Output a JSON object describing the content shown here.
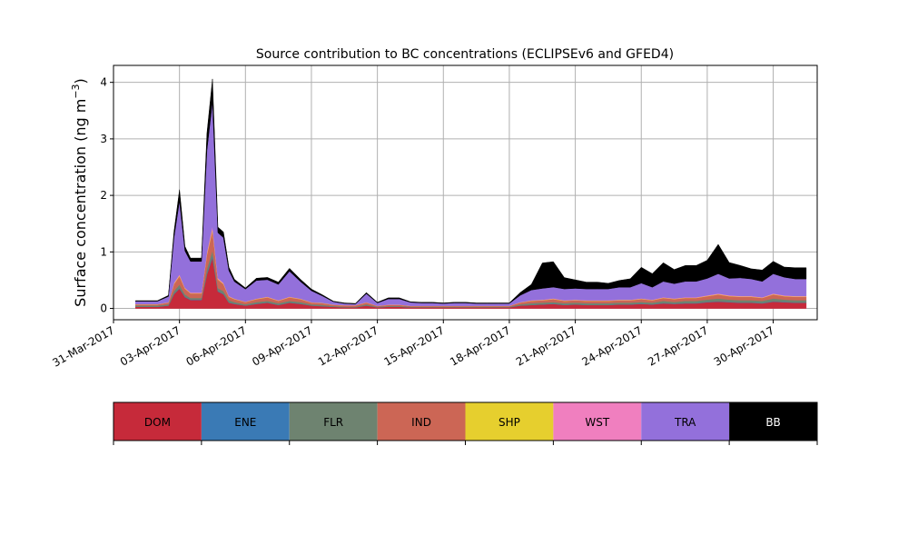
{
  "chart_data": {
    "type": "area",
    "stacked": true,
    "title": "Source contribution to BC concentrations (ECLIPSEv6 and GFED4)",
    "ylabel_main": "Surface concentration (ng m",
    "ylabel_sup": "−3",
    "ylabel_close": ")",
    "xlabel": "",
    "grid": true,
    "xlim": [
      "2017-03-31",
      "2017-05-02"
    ],
    "ylim": [
      -0.2,
      4.3
    ],
    "x_ticks": [
      "2017-03-31",
      "2017-04-03",
      "2017-04-06",
      "2017-04-09",
      "2017-04-12",
      "2017-04-15",
      "2017-04-18",
      "2017-04-21",
      "2017-04-24",
      "2017-04-27",
      "2017-04-30"
    ],
    "x_tick_labels": [
      "31-Mar-2017",
      "03-Apr-2017",
      "06-Apr-2017",
      "09-Apr-2017",
      "12-Apr-2017",
      "15-Apr-2017",
      "18-Apr-2017",
      "21-Apr-2017",
      "24-Apr-2017",
      "27-Apr-2017",
      "30-Apr-2017"
    ],
    "y_ticks": [
      0,
      1,
      2,
      3,
      4
    ],
    "y_tick_labels": [
      "0",
      "1",
      "2",
      "3",
      "4"
    ],
    "x": [
      "2017-04-01",
      "2017-04-02",
      "2017-04-02 12:00",
      "2017-04-02 18:00",
      "2017-04-03",
      "2017-04-03 06:00",
      "2017-04-03 12:00",
      "2017-04-04",
      "2017-04-04 06:00",
      "2017-04-04 12:00",
      "2017-04-04 18:00",
      "2017-04-05",
      "2017-04-05 06:00",
      "2017-04-05 12:00",
      "2017-04-06",
      "2017-04-06 12:00",
      "2017-04-07",
      "2017-04-07 12:00",
      "2017-04-08",
      "2017-04-08 12:00",
      "2017-04-09",
      "2017-04-09 12:00",
      "2017-04-10",
      "2017-04-10 12:00",
      "2017-04-11",
      "2017-04-11 12:00",
      "2017-04-12",
      "2017-04-12 12:00",
      "2017-04-13",
      "2017-04-13 12:00",
      "2017-04-14",
      "2017-04-14 12:00",
      "2017-04-15",
      "2017-04-15 12:00",
      "2017-04-16",
      "2017-04-16 12:00",
      "2017-04-17",
      "2017-04-17 12:00",
      "2017-04-18",
      "2017-04-18 12:00",
      "2017-04-19",
      "2017-04-19 12:00",
      "2017-04-20",
      "2017-04-20 12:00",
      "2017-04-21",
      "2017-04-21 12:00",
      "2017-04-22",
      "2017-04-22 12:00",
      "2017-04-23",
      "2017-04-23 12:00",
      "2017-04-24",
      "2017-04-24 12:00",
      "2017-04-25",
      "2017-04-25 12:00",
      "2017-04-26",
      "2017-04-26 12:00",
      "2017-04-27",
      "2017-04-27 12:00",
      "2017-04-28",
      "2017-04-28 12:00",
      "2017-04-29",
      "2017-04-29 12:00",
      "2017-04-30",
      "2017-04-30 12:00",
      "2017-05-01",
      "2017-05-01 12:00"
    ],
    "series": [
      {
        "name": "DOM",
        "color": "#c62a3a",
        "values": [
          0.03,
          0.03,
          0.05,
          0.25,
          0.35,
          0.2,
          0.15,
          0.15,
          0.6,
          0.9,
          0.3,
          0.25,
          0.1,
          0.08,
          0.05,
          0.08,
          0.1,
          0.06,
          0.1,
          0.08,
          0.05,
          0.04,
          0.03,
          0.02,
          0.02,
          0.05,
          0.02,
          0.03,
          0.03,
          0.02,
          0.02,
          0.02,
          0.02,
          0.02,
          0.02,
          0.02,
          0.02,
          0.02,
          0.02,
          0.05,
          0.06,
          0.07,
          0.08,
          0.06,
          0.07,
          0.06,
          0.06,
          0.06,
          0.07,
          0.07,
          0.08,
          0.07,
          0.09,
          0.08,
          0.09,
          0.09,
          0.11,
          0.12,
          0.11,
          0.1,
          0.1,
          0.09,
          0.12,
          0.11,
          0.1,
          0.1
        ]
      },
      {
        "name": "ENE",
        "color": "#3a7ab5",
        "values": [
          0.002,
          0.002,
          0.003,
          0.01,
          0.01,
          0.008,
          0.006,
          0.006,
          0.02,
          0.03,
          0.01,
          0.008,
          0.005,
          0.004,
          0.003,
          0.004,
          0.005,
          0.004,
          0.005,
          0.004,
          0.003,
          0.003,
          0.002,
          0.002,
          0.002,
          0.003,
          0.002,
          0.002,
          0.002,
          0.002,
          0.002,
          0.002,
          0.002,
          0.002,
          0.002,
          0.002,
          0.002,
          0.002,
          0.002,
          0.003,
          0.004,
          0.004,
          0.004,
          0.004,
          0.004,
          0.004,
          0.004,
          0.004,
          0.004,
          0.004,
          0.005,
          0.004,
          0.005,
          0.005,
          0.005,
          0.005,
          0.006,
          0.006,
          0.006,
          0.005,
          0.005,
          0.005,
          0.006,
          0.006,
          0.005,
          0.005
        ]
      },
      {
        "name": "FLR",
        "color": "#6e8370",
        "values": [
          0.02,
          0.02,
          0.02,
          0.05,
          0.06,
          0.04,
          0.03,
          0.03,
          0.08,
          0.1,
          0.05,
          0.05,
          0.04,
          0.03,
          0.02,
          0.03,
          0.03,
          0.03,
          0.03,
          0.03,
          0.02,
          0.02,
          0.01,
          0.01,
          0.01,
          0.02,
          0.01,
          0.01,
          0.01,
          0.01,
          0.01,
          0.01,
          0.01,
          0.01,
          0.01,
          0.01,
          0.01,
          0.01,
          0.01,
          0.02,
          0.03,
          0.03,
          0.03,
          0.03,
          0.03,
          0.03,
          0.03,
          0.03,
          0.03,
          0.03,
          0.03,
          0.03,
          0.04,
          0.03,
          0.04,
          0.04,
          0.04,
          0.05,
          0.04,
          0.04,
          0.04,
          0.04,
          0.05,
          0.04,
          0.04,
          0.04
        ]
      },
      {
        "name": "IND",
        "color": "#cc6655",
        "values": [
          0.02,
          0.02,
          0.03,
          0.12,
          0.15,
          0.1,
          0.08,
          0.08,
          0.25,
          0.35,
          0.15,
          0.12,
          0.06,
          0.05,
          0.04,
          0.05,
          0.06,
          0.04,
          0.06,
          0.05,
          0.03,
          0.03,
          0.02,
          0.02,
          0.02,
          0.03,
          0.01,
          0.02,
          0.02,
          0.01,
          0.01,
          0.01,
          0.01,
          0.01,
          0.01,
          0.01,
          0.01,
          0.01,
          0.01,
          0.03,
          0.04,
          0.04,
          0.05,
          0.04,
          0.04,
          0.04,
          0.04,
          0.04,
          0.04,
          0.04,
          0.05,
          0.04,
          0.05,
          0.05,
          0.05,
          0.05,
          0.06,
          0.07,
          0.06,
          0.06,
          0.06,
          0.05,
          0.07,
          0.06,
          0.06,
          0.06
        ]
      },
      {
        "name": "SHP",
        "color": "#e6cf2e",
        "values": [
          0.003,
          0.003,
          0.004,
          0.01,
          0.012,
          0.008,
          0.006,
          0.006,
          0.02,
          0.03,
          0.01,
          0.01,
          0.006,
          0.005,
          0.004,
          0.005,
          0.006,
          0.005,
          0.006,
          0.005,
          0.004,
          0.004,
          0.003,
          0.003,
          0.003,
          0.004,
          0.003,
          0.003,
          0.003,
          0.003,
          0.003,
          0.003,
          0.003,
          0.003,
          0.003,
          0.003,
          0.003,
          0.003,
          0.003,
          0.004,
          0.005,
          0.005,
          0.006,
          0.005,
          0.005,
          0.005,
          0.005,
          0.005,
          0.005,
          0.005,
          0.006,
          0.005,
          0.006,
          0.006,
          0.006,
          0.006,
          0.007,
          0.008,
          0.007,
          0.007,
          0.007,
          0.006,
          0.008,
          0.007,
          0.007,
          0.007
        ]
      },
      {
        "name": "WST",
        "color": "#f07fbf",
        "values": [
          0.003,
          0.003,
          0.004,
          0.015,
          0.02,
          0.012,
          0.01,
          0.01,
          0.03,
          0.05,
          0.02,
          0.015,
          0.008,
          0.006,
          0.005,
          0.006,
          0.008,
          0.006,
          0.008,
          0.006,
          0.005,
          0.004,
          0.003,
          0.003,
          0.003,
          0.004,
          0.003,
          0.003,
          0.003,
          0.003,
          0.003,
          0.003,
          0.003,
          0.003,
          0.003,
          0.003,
          0.003,
          0.003,
          0.003,
          0.005,
          0.006,
          0.006,
          0.007,
          0.006,
          0.006,
          0.006,
          0.006,
          0.006,
          0.006,
          0.006,
          0.007,
          0.006,
          0.008,
          0.007,
          0.008,
          0.008,
          0.009,
          0.01,
          0.009,
          0.009,
          0.009,
          0.008,
          0.01,
          0.009,
          0.009,
          0.009
        ]
      },
      {
        "name": "TRA",
        "color": "#9370db",
        "values": [
          0.05,
          0.05,
          0.1,
          0.8,
          1.3,
          0.65,
          0.55,
          0.55,
          1.8,
          2.2,
          0.8,
          0.8,
          0.45,
          0.3,
          0.22,
          0.32,
          0.3,
          0.28,
          0.45,
          0.3,
          0.2,
          0.12,
          0.05,
          0.03,
          0.02,
          0.15,
          0.05,
          0.1,
          0.1,
          0.06,
          0.05,
          0.05,
          0.04,
          0.05,
          0.05,
          0.04,
          0.04,
          0.04,
          0.04,
          0.12,
          0.18,
          0.2,
          0.2,
          0.2,
          0.2,
          0.2,
          0.2,
          0.2,
          0.22,
          0.22,
          0.27,
          0.22,
          0.28,
          0.26,
          0.28,
          0.28,
          0.3,
          0.35,
          0.3,
          0.32,
          0.3,
          0.28,
          0.35,
          0.32,
          0.3,
          0.3
        ]
      },
      {
        "name": "BB",
        "color": "#000000",
        "values": [
          0.01,
          0.01,
          0.02,
          0.1,
          0.2,
          0.08,
          0.06,
          0.06,
          0.3,
          0.4,
          0.1,
          0.1,
          0.06,
          0.04,
          0.02,
          0.04,
          0.04,
          0.04,
          0.05,
          0.04,
          0.03,
          0.02,
          0.01,
          0.01,
          0.01,
          0.02,
          0.01,
          0.02,
          0.02,
          0.01,
          0.01,
          0.01,
          0.01,
          0.01,
          0.01,
          0.01,
          0.01,
          0.01,
          0.01,
          0.05,
          0.1,
          0.45,
          0.45,
          0.2,
          0.15,
          0.12,
          0.12,
          0.1,
          0.12,
          0.15,
          0.28,
          0.24,
          0.33,
          0.25,
          0.28,
          0.28,
          0.32,
          0.52,
          0.28,
          0.22,
          0.18,
          0.2,
          0.22,
          0.18,
          0.2,
          0.2
        ]
      }
    ],
    "legend_position": "bottom",
    "legend": [
      {
        "name": "DOM",
        "color": "#c62a3a",
        "text_color": "#000000"
      },
      {
        "name": "ENE",
        "color": "#3a7ab5",
        "text_color": "#000000"
      },
      {
        "name": "FLR",
        "color": "#6e8370",
        "text_color": "#000000"
      },
      {
        "name": "IND",
        "color": "#cc6655",
        "text_color": "#000000"
      },
      {
        "name": "SHP",
        "color": "#e6cf2e",
        "text_color": "#000000"
      },
      {
        "name": "WST",
        "color": "#f07fbf",
        "text_color": "#000000"
      },
      {
        "name": "TRA",
        "color": "#9370db",
        "text_color": "#000000"
      },
      {
        "name": "BB",
        "color": "#000000",
        "text_color": "#ffffff"
      }
    ]
  }
}
